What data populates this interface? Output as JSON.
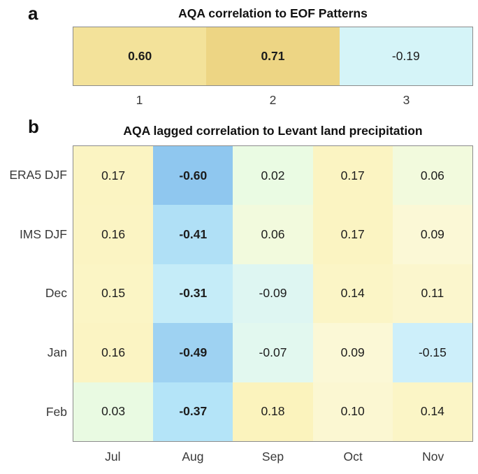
{
  "panels": [
    {
      "label": "a",
      "title": "AQA correlation to EOF Patterns"
    },
    {
      "label": "b",
      "title": "AQA lagged correlation to Levant land precipitation"
    }
  ],
  "chart_data": [
    {
      "type": "heatmap",
      "title": "AQA correlation to EOF Patterns",
      "x_labels": [
        "1",
        "2",
        "3"
      ],
      "y_labels": [],
      "values": [
        [
          0.6,
          0.71,
          -0.19
        ]
      ],
      "value_labels": [
        [
          "0.60",
          "0.71",
          "-0.19"
        ]
      ],
      "bold": [
        [
          true,
          true,
          false
        ]
      ],
      "cell_colors": [
        [
          "#f3e29a",
          "#edd584",
          "#d5f4f8"
        ]
      ],
      "colormap": "diverging blue-cyan-green-yellow (negative=blue, positive=yellow)",
      "value_range": [
        -1,
        1
      ],
      "grid": false,
      "legend": "none"
    },
    {
      "type": "heatmap",
      "title": "AQA lagged correlation to Levant land precipitation",
      "x_labels": [
        "Jul",
        "Aug",
        "Sep",
        "Oct",
        "Nov"
      ],
      "y_labels": [
        "ERA5 DJF",
        "IMS DJF",
        "Dec",
        "Jan",
        "Feb"
      ],
      "values": [
        [
          0.17,
          -0.6,
          0.02,
          0.17,
          0.06
        ],
        [
          0.16,
          -0.41,
          0.06,
          0.17,
          0.09
        ],
        [
          0.15,
          -0.31,
          -0.09,
          0.14,
          0.11
        ],
        [
          0.16,
          -0.49,
          -0.07,
          0.09,
          -0.15
        ],
        [
          0.03,
          -0.37,
          0.18,
          0.1,
          0.14
        ]
      ],
      "value_labels": [
        [
          "0.17",
          "-0.60",
          "0.02",
          "0.17",
          "0.06"
        ],
        [
          "0.16",
          "-0.41",
          "0.06",
          "0.17",
          "0.09"
        ],
        [
          "0.15",
          "-0.31",
          "-0.09",
          "0.14",
          "0.11"
        ],
        [
          "0.16",
          "-0.49",
          "-0.07",
          "0.09",
          "-0.15"
        ],
        [
          "0.03",
          "-0.37",
          "0.18",
          "0.10",
          "0.14"
        ]
      ],
      "bold": [
        [
          false,
          true,
          false,
          false,
          false
        ],
        [
          false,
          true,
          false,
          false,
          false
        ],
        [
          false,
          true,
          false,
          false,
          false
        ],
        [
          false,
          true,
          false,
          false,
          false
        ],
        [
          false,
          true,
          false,
          false,
          false
        ]
      ],
      "cell_colors": [
        [
          "#fbf4c2",
          "#8fc7ef",
          "#eafbe3",
          "#fbf4c2",
          "#f2fadd"
        ],
        [
          "#fbf4c3",
          "#b0e0f6",
          "#f2fadd",
          "#fbf4c2",
          "#fbf8d6"
        ],
        [
          "#fbf5c5",
          "#c5ecf8",
          "#def6f2",
          "#fbf5c6",
          "#fbf6cd"
        ],
        [
          "#fbf4c3",
          "#9ed2f2",
          "#e2f8ef",
          "#fbf8d6",
          "#cdeffa"
        ],
        [
          "#e9fae2",
          "#b4e4f8",
          "#fbf3bd",
          "#fbf7d2",
          "#fbf5c6"
        ]
      ],
      "colormap": "diverging blue-cyan-green-yellow (negative=blue, positive=yellow)",
      "value_range": [
        -1,
        1
      ],
      "grid": false,
      "legend": "none"
    }
  ]
}
